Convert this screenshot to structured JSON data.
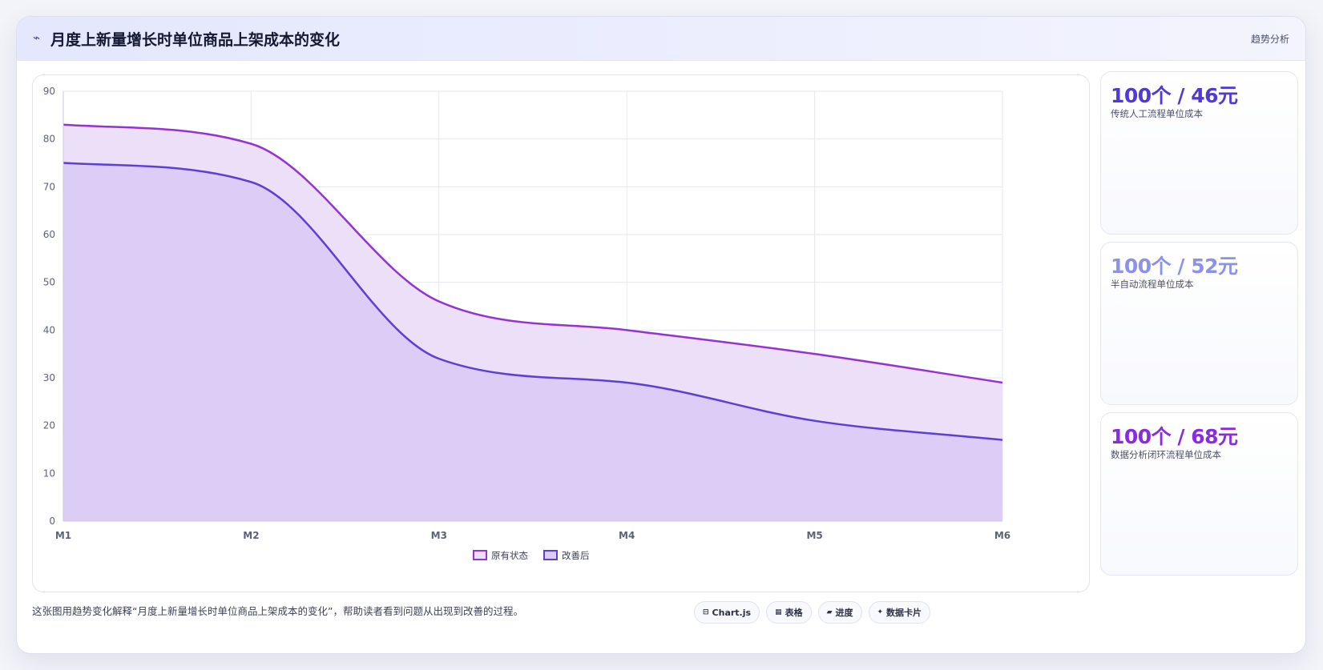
{
  "header": {
    "icon": "chart-line-icon",
    "title": "月度上新量增长时单位商品上架成本的变化",
    "tag": "趋势分析"
  },
  "chart_data": {
    "type": "area",
    "title": "",
    "xlabel": "",
    "ylabel": "",
    "x": [
      "M1",
      "M2",
      "M3",
      "M4",
      "M5",
      "M6"
    ],
    "ylim": [
      0,
      90
    ],
    "yticks": [
      0,
      10,
      20,
      30,
      40,
      50,
      60,
      70,
      80,
      90
    ],
    "grid": true,
    "legend_position": "bottom",
    "series": [
      {
        "name": "原有状态",
        "values": [
          83,
          79,
          46,
          40,
          35,
          29
        ],
        "color": "#9333d6",
        "fill": "#ecdff8"
      },
      {
        "name": "改善后",
        "values": [
          75,
          71,
          34,
          29,
          21,
          17
        ],
        "color": "#5b3fd6",
        "fill": "#dccdf7"
      }
    ]
  },
  "stats": [
    {
      "value": "100个 / 46元",
      "label": "传统人工流程单位成本",
      "color": "#4f3ad8"
    },
    {
      "value": "100个 / 52元",
      "label": "半自动流程单位成本",
      "color": "#8b93e8"
    },
    {
      "value": "100个 / 68元",
      "label": "数据分析闭环流程单位成本",
      "color": "#8a2be2"
    }
  ],
  "caption": "这张图用趋势变化解释“月度上新量增长时单位商品上架成本的变化”，帮助读者看到问题从出现到改善的过程。",
  "badges": [
    {
      "icon": "chart-icon",
      "glyph": "⊟",
      "label": "Chart.js"
    },
    {
      "icon": "table-icon",
      "glyph": "▦",
      "label": "表格"
    },
    {
      "icon": "progress-icon",
      "glyph": "▰",
      "label": "进度"
    },
    {
      "icon": "card-icon",
      "glyph": "✦",
      "label": "数据卡片"
    }
  ]
}
